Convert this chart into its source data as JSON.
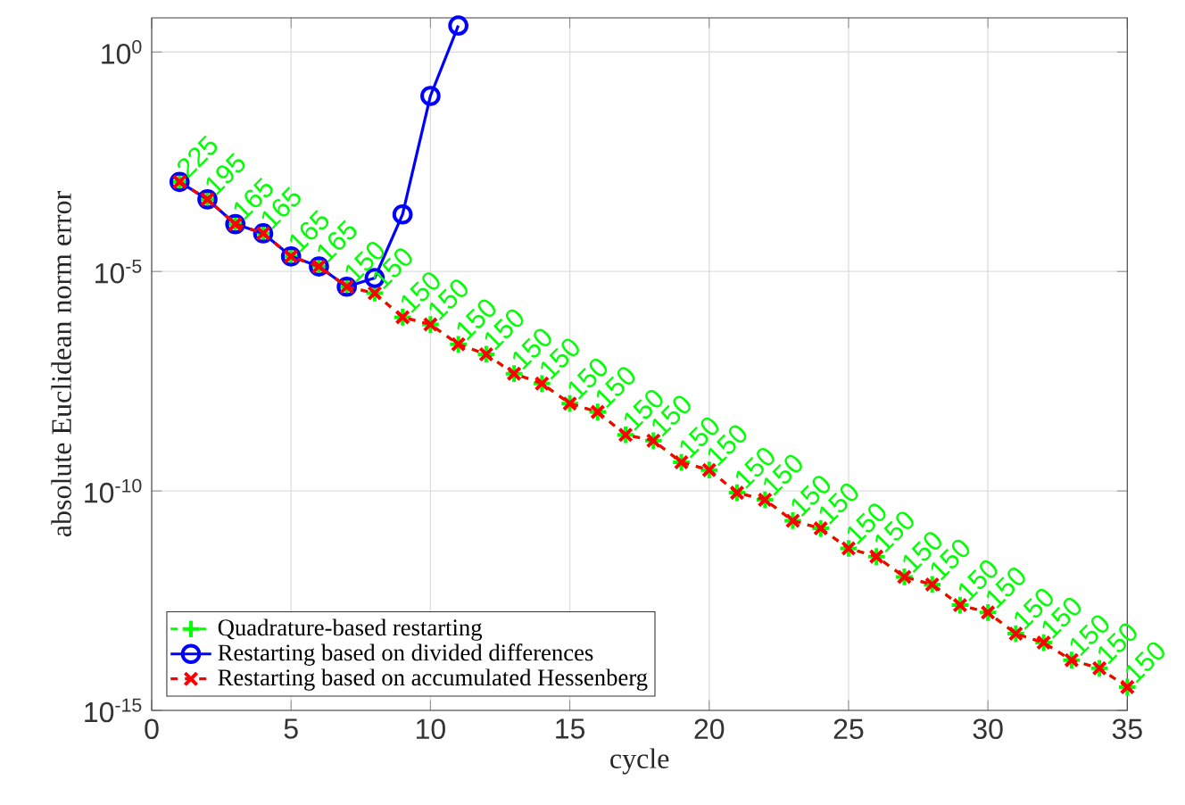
{
  "chart_data": {
    "type": "line",
    "xlabel": "cycle",
    "ylabel": "absolute Euclidean norm error",
    "xlim": [
      0,
      35
    ],
    "ylim": [
      1e-15,
      6
    ],
    "log": "y",
    "grid": true,
    "legend": "bottom left",
    "xticks": [
      0,
      5,
      10,
      15,
      20,
      25,
      30,
      35
    ],
    "yticks": [
      {
        "value": 1e-15,
        "label": "10$^{-15}$"
      },
      {
        "value": 1e-10,
        "label": "10$^{-10}$"
      },
      {
        "value": 1e-05,
        "label": "10$^{-5}$"
      },
      {
        "value": 1,
        "label": "10$^{0}$"
      }
    ],
    "annotations": [
      {
        "text": "225",
        "x": 1,
        "y": 0.0011
      },
      {
        "text": "195",
        "x": 2,
        "y": 0.00044
      },
      {
        "text": "165",
        "x": 3,
        "y": 0.00012
      },
      {
        "text": "165",
        "x": 4,
        "y": 7.4e-05
      },
      {
        "text": "165",
        "x": 5,
        "y": 2.2e-05
      },
      {
        "text": "165",
        "x": 6,
        "y": 1.3e-05
      },
      {
        "text": "150",
        "x": 7,
        "y": 4.5e-06
      },
      {
        "text": "150",
        "x": 8,
        "y": 3.2e-06
      },
      {
        "text": "150",
        "x": 9,
        "y": 9.1e-07
      },
      {
        "text": "150",
        "x": 10,
        "y": 6.2e-07
      },
      {
        "text": "150",
        "x": 11,
        "y": 2.2e-07
      },
      {
        "text": "150",
        "x": 12,
        "y": 1.3e-07
      },
      {
        "text": "150",
        "x": 13,
        "y": 4.7e-08
      },
      {
        "text": "150",
        "x": 14,
        "y": 2.8e-08
      },
      {
        "text": "150",
        "x": 15,
        "y": 9.8e-09
      },
      {
        "text": "150",
        "x": 16,
        "y": 6.3e-09
      },
      {
        "text": "150",
        "x": 17,
        "y": 1.9e-09
      },
      {
        "text": "150",
        "x": 18,
        "y": 1.4e-09
      },
      {
        "text": "150",
        "x": 19,
        "y": 4.5e-10
      },
      {
        "text": "150",
        "x": 20,
        "y": 3e-10
      },
      {
        "text": "150",
        "x": 21,
        "y": 9.1e-11
      },
      {
        "text": "150",
        "x": 22,
        "y": 6.3e-11
      },
      {
        "text": "150",
        "x": 23,
        "y": 2.1e-11
      },
      {
        "text": "150",
        "x": 24,
        "y": 1.4e-11
      },
      {
        "text": "150",
        "x": 25,
        "y": 4.9e-12
      },
      {
        "text": "150",
        "x": 26,
        "y": 3.2e-12
      },
      {
        "text": "150",
        "x": 27,
        "y": 1.1e-12
      },
      {
        "text": "150",
        "x": 28,
        "y": 7.4e-13
      },
      {
        "text": "150",
        "x": 29,
        "y": 2.5e-13
      },
      {
        "text": "150",
        "x": 30,
        "y": 1.7e-13
      },
      {
        "text": "150",
        "x": 31,
        "y": 5.6e-14
      },
      {
        "text": "150",
        "x": 32,
        "y": 3.5e-14
      },
      {
        "text": "150",
        "x": 33,
        "y": 1.4e-14
      },
      {
        "text": "150",
        "x": 34,
        "y": 9.1e-15
      },
      {
        "text": "150",
        "x": 35,
        "y": 3.4e-15
      }
    ],
    "series": [
      {
        "name": "Quadrature-based restarting",
        "color": "#00ff00",
        "marker": "plus",
        "line_style": "dashed",
        "x": [
          1,
          2,
          3,
          4,
          5,
          6,
          7,
          8,
          9,
          10,
          11,
          12,
          13,
          14,
          15,
          16,
          17,
          18,
          19,
          20,
          21,
          22,
          23,
          24,
          25,
          26,
          27,
          28,
          29,
          30,
          31,
          32,
          33,
          34,
          35
        ],
        "values": [
          0.0011,
          0.00044,
          0.00012,
          7.4e-05,
          2.2e-05,
          1.3e-05,
          4.5e-06,
          3.2e-06,
          9.1e-07,
          6.2e-07,
          2.2e-07,
          1.3e-07,
          4.7e-08,
          2.8e-08,
          9.8e-09,
          6.3e-09,
          1.9e-09,
          1.4e-09,
          4.5e-10,
          3e-10,
          9.1e-11,
          6.3e-11,
          2.1e-11,
          1.4e-11,
          4.9e-12,
          3.2e-12,
          1.1e-12,
          7.4e-13,
          2.5e-13,
          1.7e-13,
          5.6e-14,
          3.5e-14,
          1.4e-14,
          9.1e-15,
          3.4e-15
        ]
      },
      {
        "name": "Restarting based on divided differences",
        "color": "#0000ff",
        "marker": "circle",
        "line_style": "solid",
        "x": [
          1,
          2,
          3,
          4,
          5,
          6,
          7,
          8,
          9,
          10,
          11
        ],
        "values": [
          0.0011,
          0.00044,
          0.00012,
          7.4e-05,
          2.2e-05,
          1.3e-05,
          4.5e-06,
          7.1e-06,
          0.0002,
          0.1,
          4.0
        ]
      },
      {
        "name": "Restarting based on accumulated Hessenberg",
        "color": "#ff0000",
        "marker": "cross",
        "line_style": "dashed",
        "x": [
          1,
          2,
          3,
          4,
          5,
          6,
          7,
          8,
          9,
          10,
          11,
          12,
          13,
          14,
          15,
          16,
          17,
          18,
          19,
          20,
          21,
          22,
          23,
          24,
          25,
          26,
          27,
          28,
          29,
          30,
          31,
          32,
          33,
          34,
          35
        ],
        "values": [
          0.0011,
          0.00044,
          0.00012,
          7.4e-05,
          2.2e-05,
          1.3e-05,
          4.5e-06,
          3.2e-06,
          9.1e-07,
          6.2e-07,
          2.2e-07,
          1.3e-07,
          4.7e-08,
          2.8e-08,
          9.8e-09,
          6.3e-09,
          1.9e-09,
          1.4e-09,
          4.5e-10,
          3e-10,
          9.1e-11,
          6.3e-11,
          2.1e-11,
          1.4e-11,
          4.9e-12,
          3.2e-12,
          1.1e-12,
          7.4e-13,
          2.5e-13,
          1.7e-13,
          5.6e-14,
          3.5e-14,
          1.4e-14,
          9.1e-15,
          3.4e-15
        ]
      }
    ]
  }
}
